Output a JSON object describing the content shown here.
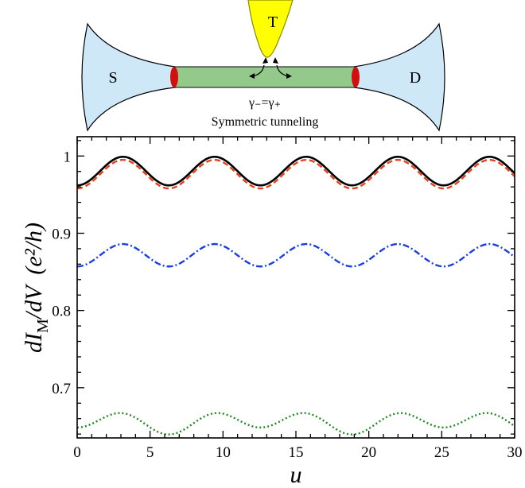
{
  "diagram": {
    "source_label": "S",
    "drain_label": "D",
    "tip_label": "T",
    "condition_text": "γ₋=γ₊",
    "caption": "Symmetric tunneling",
    "colors": {
      "lead": "#cfe8f8",
      "wire": "#93c98b",
      "majorana": "#d20f0f",
      "tip": "#ffff00",
      "tip_edge": "#8a8a00"
    }
  },
  "chart_data": {
    "type": "line",
    "title": "",
    "xlabel": "u",
    "ylabel_main": "dI",
    "ylabel_sub": "M",
    "ylabel_rest": "/dV",
    "ylabel_units": "(e²/h)",
    "xlim": [
      0,
      30
    ],
    "ylim": [
      0.635,
      1.025
    ],
    "xticks": [
      0,
      5,
      10,
      15,
      20,
      25,
      30
    ],
    "yticks": [
      0.7,
      0.8,
      0.9,
      1.0
    ],
    "ytick_labels": [
      "0.7",
      "0.8",
      "0.9",
      "1"
    ],
    "grid": false,
    "legend": "none",
    "series": [
      {
        "color": "#000000",
        "style": "solid",
        "offset": 0.9805,
        "amplitude": 0.0185,
        "period": 6.283,
        "phase": 0
      },
      {
        "color": "#e8401c",
        "style": "dashed",
        "offset": 0.9765,
        "amplitude": 0.0185,
        "period": 6.283,
        "phase": 0
      },
      {
        "color": "#1a3ee0",
        "style": "dashdot",
        "offset": 0.8715,
        "amplitude": 0.0145,
        "period": 6.283,
        "phase": 0
      },
      {
        "color": "#1f8a1f",
        "style": "dotted",
        "offset": 0.6555,
        "amplitude": 0.0115,
        "period": 6.283,
        "phase": 0,
        "second_amplitude": 0.0045,
        "second_period": 12.566
      }
    ]
  }
}
